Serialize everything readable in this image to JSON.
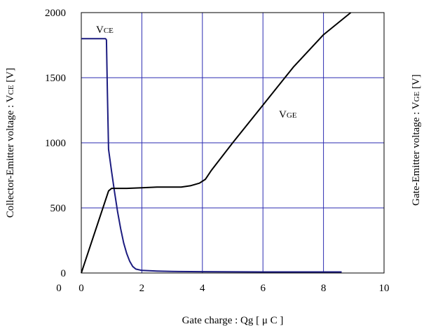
{
  "chart_data": {
    "type": "line",
    "title": "",
    "xlabel": "Gate charge  :  Qg  [  μ C ]",
    "ylabel_left": "Collector-Emitter voltage : V",
    "ylabel_left_sub": "CE",
    "ylabel_left_unit": " [V]",
    "ylabel_right": "Gate-Emitter voltage : V",
    "ylabel_right_sub": "GE",
    "ylabel_right_unit": " [V]",
    "xlim": [
      0,
      10
    ],
    "ylim_left": [
      0,
      2000
    ],
    "x_ticks": [
      "0",
      "2",
      "4",
      "6",
      "8",
      "10"
    ],
    "y_ticks_left": [
      "0",
      "500",
      "1000",
      "1500",
      "2000"
    ],
    "y_ticks_right": [
      "0"
    ],
    "grid": true,
    "colors": {
      "grid": "#2b2bb0",
      "vce": "#1c1c80",
      "vge": "#000000"
    },
    "series": [
      {
        "name": "V",
        "name_sub": "CE",
        "points": [
          [
            0,
            1800
          ],
          [
            0.8,
            1800
          ],
          [
            0.83,
            1790
          ],
          [
            0.86,
            1400
          ],
          [
            0.9,
            950
          ],
          [
            1.0,
            780
          ],
          [
            1.1,
            620
          ],
          [
            1.2,
            470
          ],
          [
            1.3,
            340
          ],
          [
            1.4,
            230
          ],
          [
            1.5,
            150
          ],
          [
            1.6,
            90
          ],
          [
            1.7,
            50
          ],
          [
            1.8,
            30
          ],
          [
            2.0,
            20
          ],
          [
            2.5,
            15
          ],
          [
            3.0,
            12
          ],
          [
            4.0,
            10
          ],
          [
            6.0,
            8
          ],
          [
            8.6,
            8
          ]
        ]
      },
      {
        "name": "V",
        "name_sub": "GE",
        "points": [
          [
            0,
            0
          ],
          [
            0.9,
            630
          ],
          [
            1.0,
            650
          ],
          [
            1.5,
            650
          ],
          [
            2.0,
            655
          ],
          [
            2.5,
            660
          ],
          [
            3.0,
            660
          ],
          [
            3.3,
            660
          ],
          [
            3.6,
            670
          ],
          [
            3.9,
            690
          ],
          [
            4.1,
            720
          ],
          [
            4.3,
            790
          ],
          [
            5.0,
            1000
          ],
          [
            6.0,
            1290
          ],
          [
            7.0,
            1580
          ],
          [
            8.0,
            1830
          ],
          [
            8.9,
            2000
          ]
        ]
      }
    ]
  }
}
